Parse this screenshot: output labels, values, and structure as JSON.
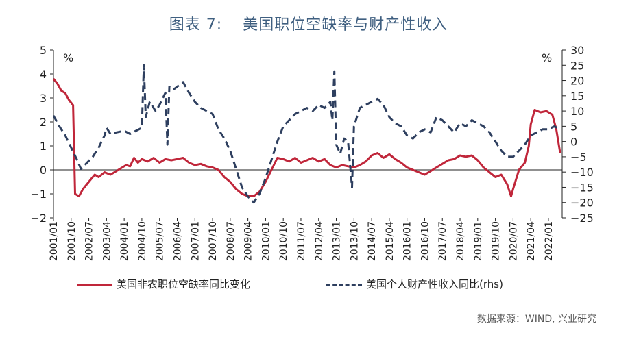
{
  "title": {
    "number": "图表 7:",
    "text": "美国职位空缺率与财产性收入"
  },
  "source": "数据来源：WIND, 兴业研究",
  "chart_data": {
    "type": "line",
    "left_unit": "%",
    "right_unit": "%",
    "left_axis": {
      "ylim": [
        -2,
        5
      ],
      "ticks": [
        -2,
        -1,
        0,
        1,
        2,
        3,
        4,
        5
      ]
    },
    "right_axis": {
      "ylim": [
        -25,
        30
      ],
      "ticks": [
        -25,
        -20,
        -15,
        -10,
        -5,
        0,
        5,
        10,
        15,
        20,
        25,
        30
      ]
    },
    "x_tick_labels": [
      "2001/01",
      "2001/10",
      "2002/07",
      "2003/04",
      "2004/01",
      "2004/10",
      "2005/07",
      "2006/04",
      "2007/01",
      "2007/10",
      "2008/07",
      "2009/04",
      "2010/01",
      "2010/10",
      "2011/07",
      "2012/04",
      "2013/01",
      "2013/10",
      "2014/07",
      "2015/04",
      "2016/01",
      "2016/10",
      "2017/07",
      "2018/04",
      "2019/01",
      "2019/10",
      "2020/07",
      "2021/04",
      "2022/01"
    ],
    "grid": false,
    "legend_position": "bottom",
    "series": [
      {
        "name": "美国非农职位空缺率同比变化",
        "axis": "left",
        "color": "#c0263a",
        "style": "solid",
        "points": [
          [
            "2001-01",
            3.8
          ],
          [
            "2001-03",
            3.6
          ],
          [
            "2001-05",
            3.3
          ],
          [
            "2001-07",
            3.2
          ],
          [
            "2001-09",
            2.9
          ],
          [
            "2001-10",
            2.8
          ],
          [
            "2001-11",
            2.7
          ],
          [
            "2001-12",
            -1.0
          ],
          [
            "2002-02",
            -1.1
          ],
          [
            "2002-04",
            -0.8
          ],
          [
            "2002-06",
            -0.6
          ],
          [
            "2002-08",
            -0.4
          ],
          [
            "2002-10",
            -0.2
          ],
          [
            "2002-12",
            -0.3
          ],
          [
            "2003-03",
            -0.1
          ],
          [
            "2003-06",
            -0.2
          ],
          [
            "2003-09",
            -0.05
          ],
          [
            "2003-12",
            0.1
          ],
          [
            "2004-02",
            0.2
          ],
          [
            "2004-04",
            0.15
          ],
          [
            "2004-06",
            0.5
          ],
          [
            "2004-08",
            0.3
          ],
          [
            "2004-10",
            0.45
          ],
          [
            "2005-01",
            0.35
          ],
          [
            "2005-04",
            0.5
          ],
          [
            "2005-07",
            0.3
          ],
          [
            "2005-10",
            0.45
          ],
          [
            "2006-01",
            0.4
          ],
          [
            "2006-04",
            0.45
          ],
          [
            "2006-07",
            0.5
          ],
          [
            "2006-10",
            0.3
          ],
          [
            "2007-01",
            0.2
          ],
          [
            "2007-04",
            0.25
          ],
          [
            "2007-07",
            0.15
          ],
          [
            "2007-10",
            0.1
          ],
          [
            "2008-01",
            0.0
          ],
          [
            "2008-04",
            -0.3
          ],
          [
            "2008-07",
            -0.5
          ],
          [
            "2008-10",
            -0.8
          ],
          [
            "2009-01",
            -1.0
          ],
          [
            "2009-04",
            -1.1
          ],
          [
            "2009-07",
            -1.1
          ],
          [
            "2009-10",
            -0.9
          ],
          [
            "2010-01",
            -0.5
          ],
          [
            "2010-04",
            0.0
          ],
          [
            "2010-07",
            0.5
          ],
          [
            "2010-10",
            0.45
          ],
          [
            "2011-01",
            0.35
          ],
          [
            "2011-04",
            0.5
          ],
          [
            "2011-07",
            0.3
          ],
          [
            "2011-10",
            0.4
          ],
          [
            "2012-01",
            0.5
          ],
          [
            "2012-04",
            0.35
          ],
          [
            "2012-07",
            0.45
          ],
          [
            "2012-10",
            0.2
          ],
          [
            "2013-01",
            0.1
          ],
          [
            "2013-04",
            0.2
          ],
          [
            "2013-07",
            0.15
          ],
          [
            "2013-10",
            0.1
          ],
          [
            "2014-01",
            0.2
          ],
          [
            "2014-04",
            0.35
          ],
          [
            "2014-07",
            0.6
          ],
          [
            "2014-10",
            0.7
          ],
          [
            "2015-01",
            0.5
          ],
          [
            "2015-04",
            0.65
          ],
          [
            "2015-07",
            0.45
          ],
          [
            "2015-10",
            0.3
          ],
          [
            "2016-01",
            0.1
          ],
          [
            "2016-04",
            0.0
          ],
          [
            "2016-07",
            -0.1
          ],
          [
            "2016-10",
            -0.2
          ],
          [
            "2017-01",
            -0.05
          ],
          [
            "2017-04",
            0.1
          ],
          [
            "2017-07",
            0.25
          ],
          [
            "2017-10",
            0.4
          ],
          [
            "2018-01",
            0.45
          ],
          [
            "2018-04",
            0.6
          ],
          [
            "2018-07",
            0.55
          ],
          [
            "2018-10",
            0.6
          ],
          [
            "2019-01",
            0.4
          ],
          [
            "2019-04",
            0.1
          ],
          [
            "2019-07",
            -0.1
          ],
          [
            "2019-10",
            -0.3
          ],
          [
            "2020-01",
            -0.2
          ],
          [
            "2020-04",
            -0.6
          ],
          [
            "2020-06",
            -1.1
          ],
          [
            "2020-07",
            -0.8
          ],
          [
            "2020-10",
            0.0
          ],
          [
            "2021-01",
            0.3
          ],
          [
            "2021-03",
            1.0
          ],
          [
            "2021-04",
            1.9
          ],
          [
            "2021-06",
            2.5
          ],
          [
            "2021-09",
            2.4
          ],
          [
            "2021-12",
            2.45
          ],
          [
            "2022-03",
            2.3
          ],
          [
            "2022-05",
            1.7
          ],
          [
            "2022-07",
            0.7
          ]
        ]
      },
      {
        "name": "美国个人财产性收入同比(rhs)",
        "axis": "right",
        "color": "#2e3f5f",
        "style": "dashed",
        "points": [
          [
            "2001-01",
            8.5
          ],
          [
            "2001-04",
            5
          ],
          [
            "2001-07",
            2
          ],
          [
            "2001-10",
            -2
          ],
          [
            "2002-01",
            -6
          ],
          [
            "2002-03",
            -9
          ],
          [
            "2002-06",
            -7
          ],
          [
            "2002-09",
            -5
          ],
          [
            "2002-12",
            -2
          ],
          [
            "2003-03",
            2
          ],
          [
            "2003-04",
            4.5
          ],
          [
            "2003-06",
            2.5
          ],
          [
            "2003-09",
            3
          ],
          [
            "2004-01",
            3.5
          ],
          [
            "2004-04",
            2.5
          ],
          [
            "2004-07",
            3.5
          ],
          [
            "2004-10",
            4.5
          ],
          [
            "2004-11",
            25
          ],
          [
            "2004-12",
            8
          ],
          [
            "2005-02",
            13
          ],
          [
            "2005-05",
            10
          ],
          [
            "2005-07",
            12
          ],
          [
            "2005-10",
            16
          ],
          [
            "2005-11",
            -1
          ],
          [
            "2005-12",
            18
          ],
          [
            "2006-02",
            17
          ],
          [
            "2006-04",
            18
          ],
          [
            "2006-07",
            19.5
          ],
          [
            "2006-10",
            16
          ],
          [
            "2007-01",
            13
          ],
          [
            "2007-04",
            11
          ],
          [
            "2007-07",
            10
          ],
          [
            "2007-10",
            9
          ],
          [
            "2008-01",
            4
          ],
          [
            "2008-04",
            1
          ],
          [
            "2008-07",
            -3
          ],
          [
            "2008-10",
            -9
          ],
          [
            "2009-01",
            -15
          ],
          [
            "2009-04",
            -18
          ],
          [
            "2009-07",
            -20
          ],
          [
            "2009-10",
            -17
          ],
          [
            "2010-01",
            -12
          ],
          [
            "2010-04",
            -6
          ],
          [
            "2010-07",
            0
          ],
          [
            "2010-10",
            5
          ],
          [
            "2011-01",
            7
          ],
          [
            "2011-04",
            9
          ],
          [
            "2011-07",
            10
          ],
          [
            "2011-10",
            11
          ],
          [
            "2012-01",
            10
          ],
          [
            "2012-04",
            12
          ],
          [
            "2012-07",
            11
          ],
          [
            "2012-10",
            13
          ],
          [
            "2012-11",
            7
          ],
          [
            "2012-12",
            23
          ],
          [
            "2013-01",
            -1
          ],
          [
            "2013-03",
            -4
          ],
          [
            "2013-05",
            1
          ],
          [
            "2013-07",
            0
          ],
          [
            "2013-09",
            -15
          ],
          [
            "2013-10",
            5
          ],
          [
            "2014-01",
            11
          ],
          [
            "2014-04",
            12
          ],
          [
            "2014-07",
            13
          ],
          [
            "2014-10",
            14
          ],
          [
            "2015-01",
            12
          ],
          [
            "2015-04",
            8
          ],
          [
            "2015-07",
            6
          ],
          [
            "2015-10",
            5
          ],
          [
            "2016-01",
            2
          ],
          [
            "2016-04",
            1
          ],
          [
            "2016-07",
            3
          ],
          [
            "2016-10",
            4
          ],
          [
            "2017-01",
            3
          ],
          [
            "2017-04",
            8
          ],
          [
            "2017-07",
            7
          ],
          [
            "2017-10",
            5
          ],
          [
            "2018-01",
            3
          ],
          [
            "2018-04",
            6
          ],
          [
            "2018-07",
            5
          ],
          [
            "2018-10",
            7
          ],
          [
            "2019-01",
            6
          ],
          [
            "2019-04",
            5
          ],
          [
            "2019-07",
            3
          ],
          [
            "2019-10",
            0
          ],
          [
            "2019-11",
            -1
          ],
          [
            "2020-01",
            -3
          ],
          [
            "2020-04",
            -5
          ],
          [
            "2020-07",
            -5
          ],
          [
            "2020-10",
            -3
          ],
          [
            "2021-01",
            -1
          ],
          [
            "2021-04",
            2
          ],
          [
            "2021-07",
            3
          ],
          [
            "2021-10",
            4
          ],
          [
            "2022-01",
            4
          ],
          [
            "2022-04",
            5
          ],
          [
            "2022-07",
            4
          ]
        ]
      }
    ]
  }
}
